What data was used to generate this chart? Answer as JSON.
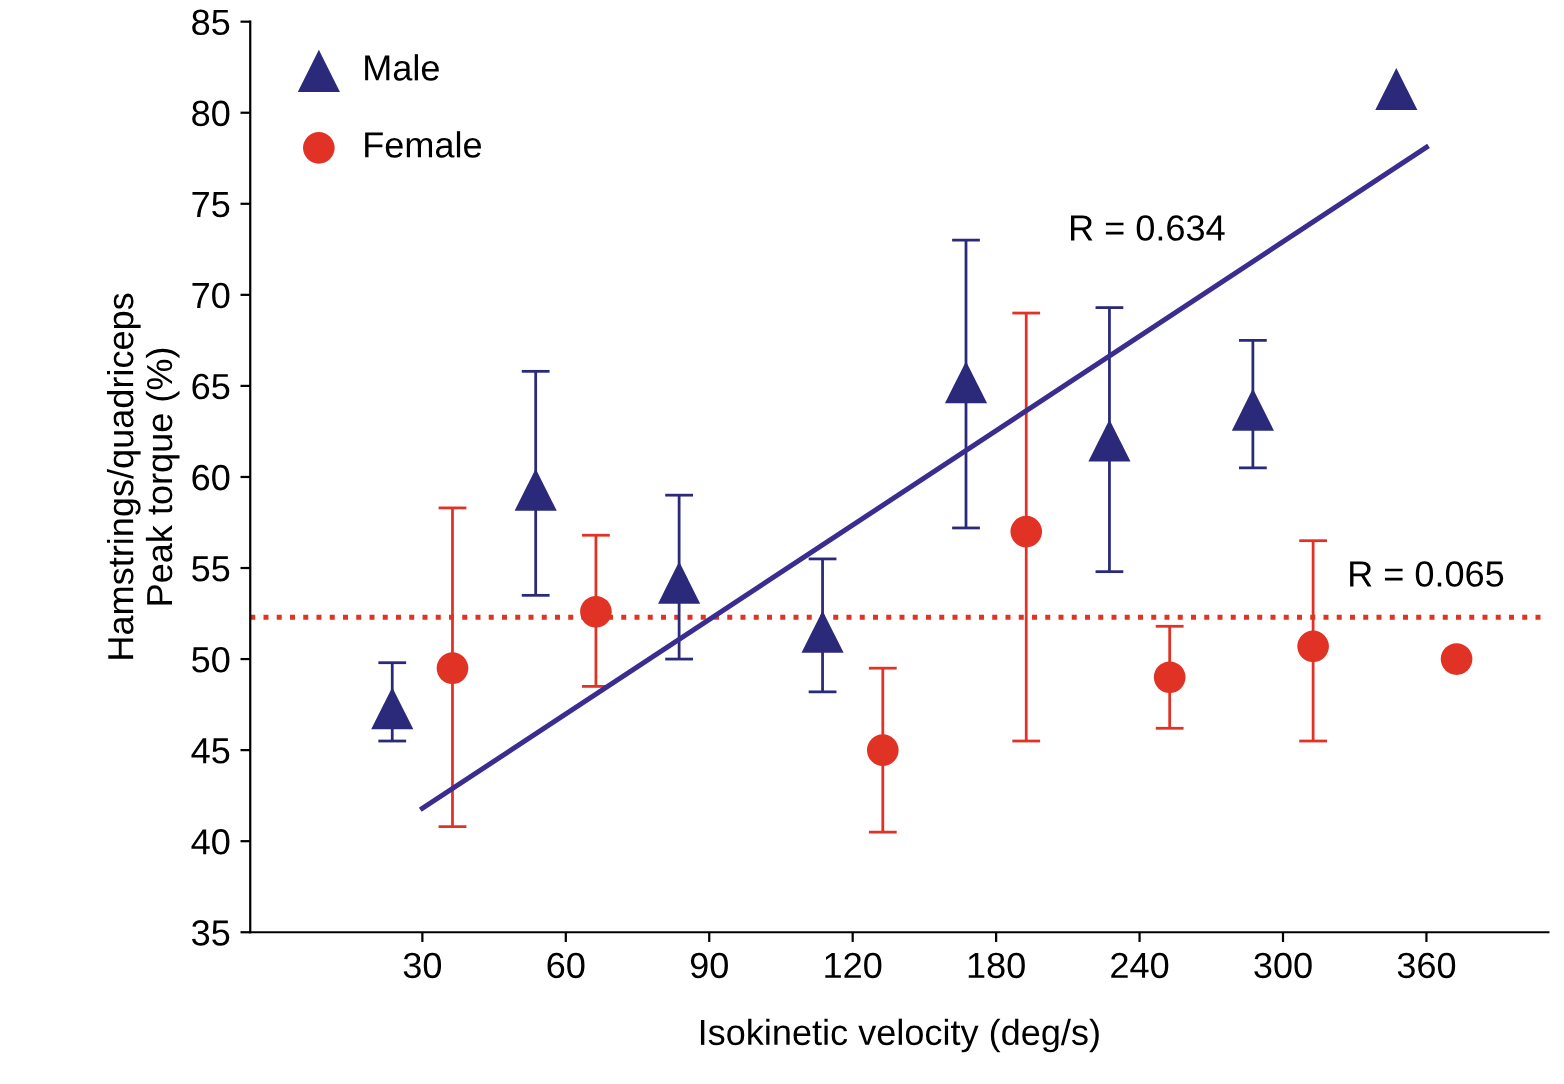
{
  "chart_data": {
    "type": "scatter",
    "xlabel": "Isokinetic velocity (deg/s)",
    "ylabel": "Hamstrings/quadriceps\nPeak torque (%)",
    "categories": [
      "30",
      "60",
      "90",
      "120",
      "180",
      "240",
      "300",
      "360"
    ],
    "ylim": [
      35,
      85
    ],
    "yticks": [
      35,
      40,
      45,
      50,
      55,
      60,
      65,
      70,
      75,
      80,
      85
    ],
    "grid": false,
    "legend": "top left",
    "series": [
      {
        "name": "Male",
        "color": "#2b2a7a",
        "marker": "triangle",
        "x": [
          "30",
          "60",
          "90",
          "120",
          "180",
          "240",
          "300",
          "360"
        ],
        "values": [
          47.3,
          59.3,
          54.2,
          51.5,
          65.2,
          62,
          63.7,
          81.3
        ],
        "errors": [
          [
            45.5,
            49.8
          ],
          [
            53.5,
            65.8
          ],
          [
            50,
            59
          ],
          [
            48.2,
            55.5
          ],
          [
            57.2,
            73
          ],
          [
            54.8,
            69.3
          ],
          [
            60.5,
            67.5
          ],
          null
        ]
      },
      {
        "name": "Female",
        "color": "#e03325",
        "marker": "circle",
        "x": [
          "30",
          "60",
          "120",
          "180",
          "240",
          "300",
          "360"
        ],
        "values": [
          49.5,
          52.6,
          45,
          57,
          49,
          50.7,
          50
        ],
        "errors": [
          [
            40.8,
            58.3
          ],
          [
            48.5,
            56.8
          ],
          [
            40.5,
            49.5
          ],
          [
            45.5,
            69
          ],
          [
            46.2,
            51.8
          ],
          [
            45.5,
            56.5
          ],
          null
        ]
      },
      {
        "type": "line",
        "color": "#3b2d8f",
        "marker": "none",
        "line_style": "solid",
        "x": [
          "30",
          "360"
        ],
        "values": [
          41.8,
          78.1
        ]
      }
    ],
    "ref_lines": [
      {
        "axis": "y",
        "value": 52.3,
        "color": "#e03325",
        "line_style": "dotted"
      }
    ],
    "annotations": [
      "R = 0.634",
      "R = 0.065"
    ]
  }
}
